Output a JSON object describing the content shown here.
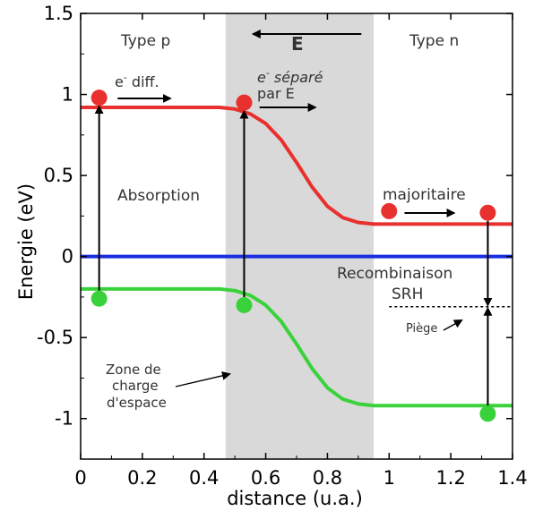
{
  "chart_data": {
    "type": "line",
    "xlabel": "distance (u.a.)",
    "ylabel": "Energie (eV)",
    "xlim": [
      0,
      1.4
    ],
    "ylim": [
      -1.25,
      1.5
    ],
    "xticks": [
      "0",
      "0.2",
      "0.4",
      "0.6",
      "0.8",
      "1",
      "1.2",
      "1.4"
    ],
    "yticks": [
      "1.5",
      "1",
      "0.5",
      "0",
      "-0.5",
      "-1"
    ],
    "grid": false,
    "colors": {
      "conduction": "#e8312e",
      "valence": "#3ad23a",
      "fermi": "#1a2fe0",
      "depletion": "#d9d9d9"
    },
    "depletion_region": [
      0.47,
      0.95
    ],
    "series": [
      {
        "key": "conduction",
        "x": [
          0,
          0.45,
          0.5,
          0.55,
          0.6,
          0.65,
          0.7,
          0.75,
          0.8,
          0.85,
          0.9,
          0.95,
          1.4
        ],
        "y": [
          0.92,
          0.92,
          0.91,
          0.88,
          0.82,
          0.72,
          0.58,
          0.43,
          0.31,
          0.24,
          0.21,
          0.2,
          0.2
        ]
      },
      {
        "key": "valence",
        "x": [
          0,
          0.45,
          0.5,
          0.55,
          0.6,
          0.65,
          0.7,
          0.75,
          0.8,
          0.85,
          0.9,
          0.95,
          1.4
        ],
        "y": [
          -0.2,
          -0.2,
          -0.21,
          -0.24,
          -0.3,
          -0.4,
          -0.54,
          -0.69,
          -0.81,
          -0.88,
          -0.91,
          -0.92,
          -0.92
        ]
      },
      {
        "key": "fermi",
        "x": [
          0,
          1.4
        ],
        "y": [
          0,
          0
        ]
      }
    ],
    "points": [
      {
        "x": 0.06,
        "y": 0.98,
        "color": "red"
      },
      {
        "x": 0.53,
        "y": 0.95,
        "color": "red"
      },
      {
        "x": 1.0,
        "y": 0.28,
        "color": "red"
      },
      {
        "x": 1.32,
        "y": 0.27,
        "color": "red"
      },
      {
        "x": 0.06,
        "y": -0.26,
        "color": "green"
      },
      {
        "x": 0.53,
        "y": -0.3,
        "color": "green"
      },
      {
        "x": 1.32,
        "y": -0.97,
        "color": "green"
      }
    ],
    "trap_level": -0.31,
    "annotations": {
      "type_p": "Type p",
      "type_n": "Type n",
      "field": "E",
      "e_diff_sup": "-",
      "e_diff": " diff.",
      "e_sep_sup": "-",
      "e_sep": " séparé",
      "par_e": "par E",
      "absorption": "Absorption",
      "majoritaire": "majoritaire",
      "recombinaison": "Recombinaison",
      "srh": "SRH",
      "piege": "Piège",
      "zone1": "Zone de",
      "zone2": "charge",
      "zone3": "d'espace"
    }
  }
}
